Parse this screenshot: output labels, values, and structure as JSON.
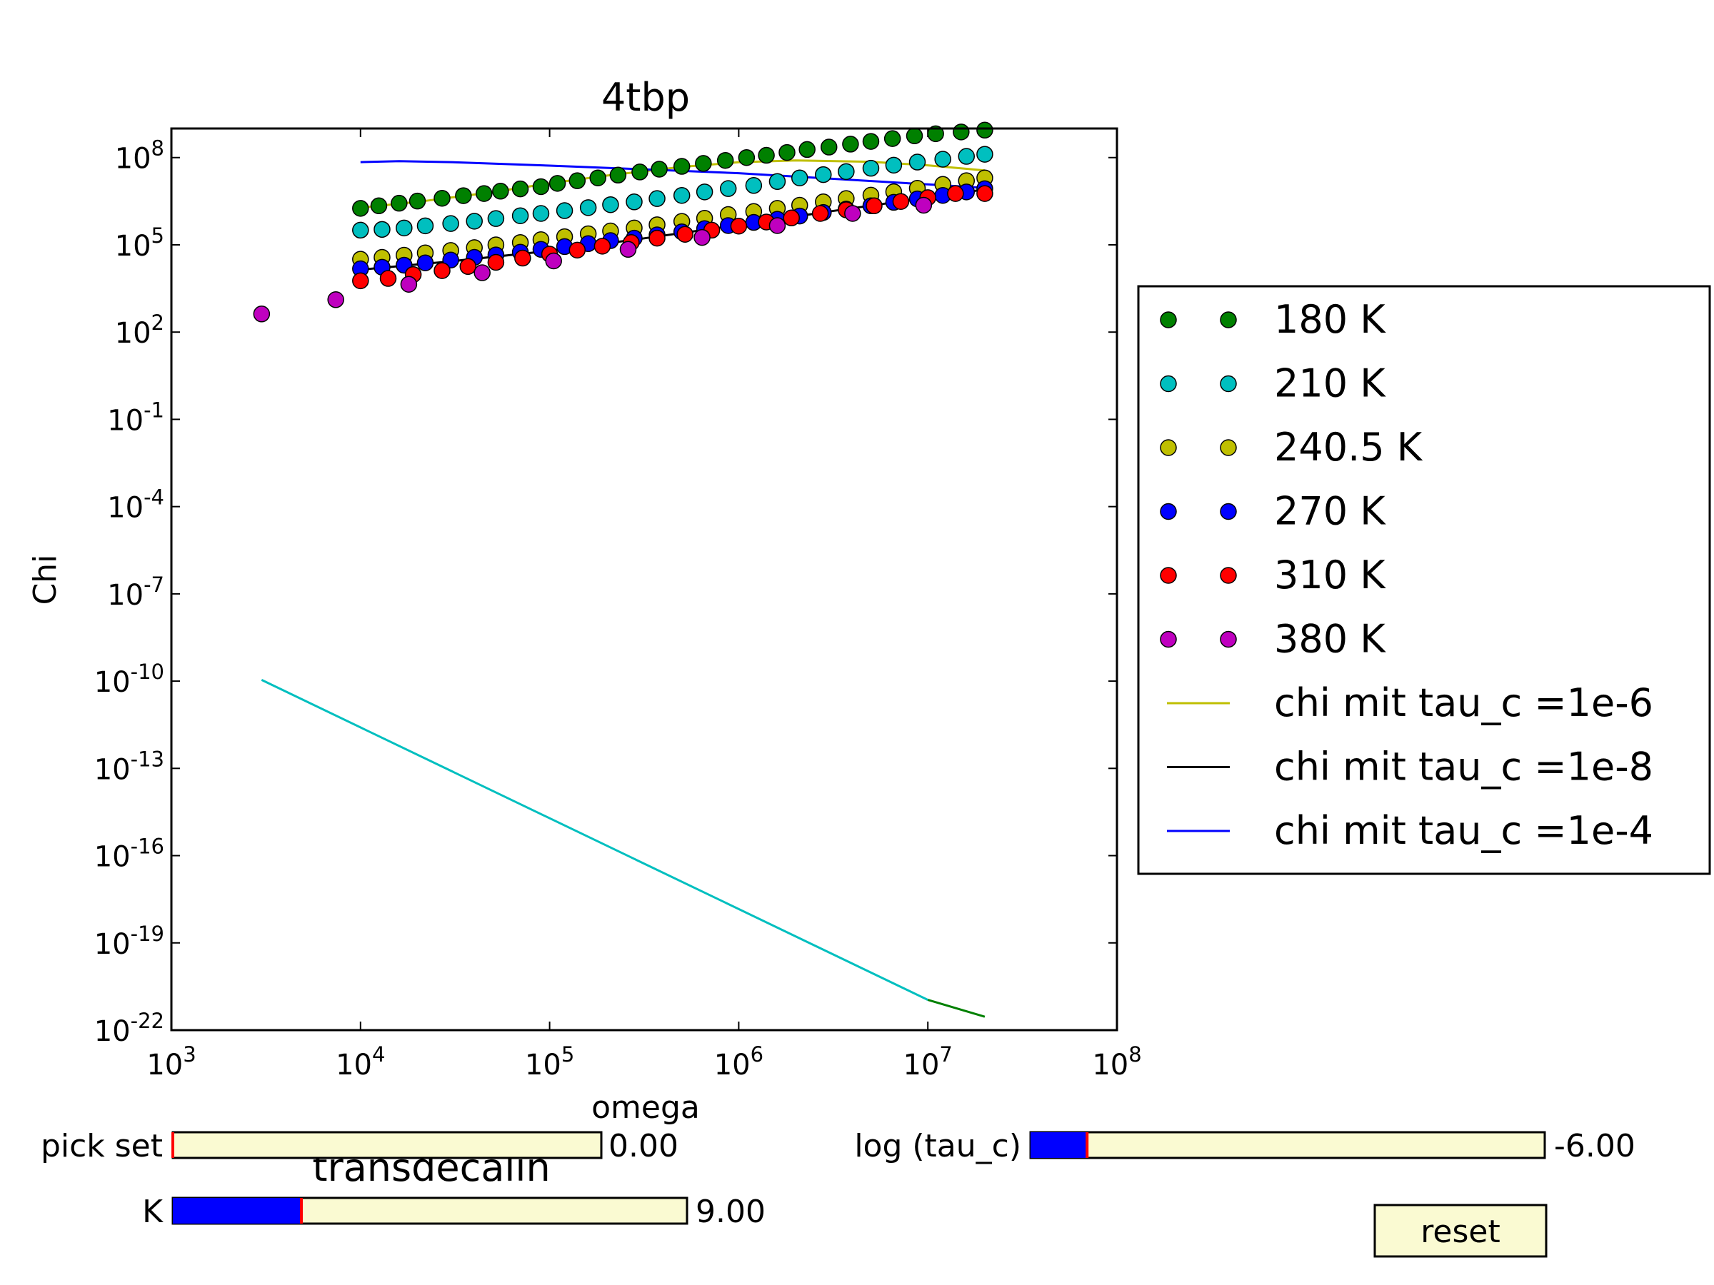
{
  "colors": {
    "background": "#ffffff",
    "slider_track": "#fafad2",
    "slider_fill": "#0000ff",
    "slider_marker": "#ff0000",
    "button_face": "#fafad2"
  },
  "chart_data": {
    "type": "scatter",
    "title": "4tbp",
    "xlabel": "omega",
    "ylabel": "Chi",
    "xscale": "log",
    "yscale": "log",
    "xlim": [
      1000,
      100000000
    ],
    "ylim": [
      1e-22,
      1000000000.0
    ],
    "grid": false,
    "legend_position": "outside-right",
    "x_ticks": [
      {
        "value": 1000,
        "base": "10",
        "exp": "3"
      },
      {
        "value": 10000,
        "base": "10",
        "exp": "4"
      },
      {
        "value": 100000,
        "base": "10",
        "exp": "5"
      },
      {
        "value": 1000000,
        "base": "10",
        "exp": "6"
      },
      {
        "value": 10000000,
        "base": "10",
        "exp": "7"
      },
      {
        "value": 100000000,
        "base": "10",
        "exp": "8"
      }
    ],
    "y_ticks": [
      {
        "value": 100000000.0,
        "base": "10",
        "exp": "8"
      },
      {
        "value": 100000.0,
        "base": "10",
        "exp": "5"
      },
      {
        "value": 100.0,
        "base": "10",
        "exp": "2"
      },
      {
        "value": 0.1,
        "base": "10",
        "exp": "-1"
      },
      {
        "value": 0.0001,
        "base": "10",
        "exp": "-4"
      },
      {
        "value": 1e-07,
        "base": "10",
        "exp": "-7"
      },
      {
        "value": 1e-10,
        "base": "10",
        "exp": "-10"
      },
      {
        "value": 1e-13,
        "base": "10",
        "exp": "-13"
      },
      {
        "value": 1e-16,
        "base": "10",
        "exp": "-16"
      },
      {
        "value": 1e-19,
        "base": "10",
        "exp": "-19"
      },
      {
        "value": 1e-22,
        "base": "10",
        "exp": "-22"
      }
    ],
    "scatter_series": [
      {
        "name": "180 K",
        "color": "#008000",
        "points": [
          [
            10000,
            1800000.0
          ],
          [
            12500,
            2200000.0
          ],
          [
            16000,
            2700000.0
          ],
          [
            20000,
            3200000.0
          ],
          [
            27000,
            4000000.0
          ],
          [
            35000,
            4900000.0
          ],
          [
            45000,
            5800000.0
          ],
          [
            55000,
            7000000.0
          ],
          [
            70000,
            8400000.0
          ],
          [
            90000,
            10000000.0
          ],
          [
            110000,
            13000000.0
          ],
          [
            140000,
            16000000.0
          ],
          [
            180000,
            20000000.0
          ],
          [
            230000,
            25000000.0
          ],
          [
            300000,
            32000000.0
          ],
          [
            380000,
            40000000.0
          ],
          [
            500000,
            50000000.0
          ],
          [
            650000,
            63000000.0
          ],
          [
            850000,
            80000000.0
          ],
          [
            1100000,
            100000000.0
          ],
          [
            1400000,
            120000000.0
          ],
          [
            1800000,
            150000000.0
          ],
          [
            2300000,
            190000000.0
          ],
          [
            3000000,
            230000000.0
          ],
          [
            3900000,
            290000000.0
          ],
          [
            5000000,
            360000000.0
          ],
          [
            6500000,
            450000000.0
          ],
          [
            8500000,
            560000000.0
          ],
          [
            11000000,
            660000000.0
          ],
          [
            15000000,
            760000000.0
          ],
          [
            20000000,
            880000000.0
          ]
        ]
      },
      {
        "name": "210 K",
        "color": "#00bfbf",
        "points": [
          [
            10000,
            320000.0
          ],
          [
            13000,
            340000.0
          ],
          [
            17000,
            380000.0
          ],
          [
            22000,
            450000.0
          ],
          [
            30000,
            540000.0
          ],
          [
            40000,
            650000.0
          ],
          [
            52000,
            800000.0
          ],
          [
            70000,
            1000000.0
          ],
          [
            90000,
            1200000.0
          ],
          [
            120000,
            1500000.0
          ],
          [
            160000,
            1900000.0
          ],
          [
            210000,
            2400000.0
          ],
          [
            280000,
            3000000.0
          ],
          [
            370000,
            3900000.0
          ],
          [
            500000,
            5000000.0
          ],
          [
            660000,
            6600000.0
          ],
          [
            880000,
            8600000.0
          ],
          [
            1200000,
            11000000.0
          ],
          [
            1600000,
            15000000.0
          ],
          [
            2100000,
            20000000.0
          ],
          [
            2800000,
            26000000.0
          ],
          [
            3700000,
            33000000.0
          ],
          [
            5000000,
            43000000.0
          ],
          [
            6600000,
            55000000.0
          ],
          [
            8800000,
            70000000.0
          ],
          [
            12000000,
            88000000.0
          ],
          [
            16000000,
            110000000.0
          ],
          [
            20000000,
            130000000.0
          ]
        ]
      },
      {
        "name": "240.5 K",
        "color": "#bfbf00",
        "points": [
          [
            10000,
            32000.0
          ],
          [
            13000,
            37000.0
          ],
          [
            17000,
            44000.0
          ],
          [
            22000,
            53000.0
          ],
          [
            30000,
            64000.0
          ],
          [
            40000,
            80000.0
          ],
          [
            52000,
            100000.0
          ],
          [
            70000,
            120000.0
          ],
          [
            90000,
            150000.0
          ],
          [
            120000,
            190000.0
          ],
          [
            160000,
            240000.0
          ],
          [
            210000,
            300000.0
          ],
          [
            280000,
            380000.0
          ],
          [
            370000,
            490000.0
          ],
          [
            500000,
            640000.0
          ],
          [
            660000,
            820000.0
          ],
          [
            880000,
            1100000.0
          ],
          [
            1200000,
            1400000.0
          ],
          [
            1600000,
            1800000.0
          ],
          [
            2100000,
            2300000.0
          ],
          [
            2800000,
            3000000.0
          ],
          [
            3700000,
            3900000.0
          ],
          [
            5000000,
            5100000.0
          ],
          [
            6600000,
            6700000.0
          ],
          [
            8800000,
            8800000.0
          ],
          [
            12000000,
            12000000.0
          ],
          [
            16000000,
            16000000.0
          ],
          [
            20000000,
            20000000.0
          ]
        ]
      },
      {
        "name": "270 K",
        "color": "#0000ff",
        "points": [
          [
            10000,
            15000.0
          ],
          [
            13000,
            17000.0
          ],
          [
            17000,
            20000.0
          ],
          [
            22000,
            24000.0
          ],
          [
            30000,
            30000.0
          ],
          [
            40000,
            37000.0
          ],
          [
            52000,
            45000.0
          ],
          [
            70000,
            56000.0
          ],
          [
            90000,
            70000.0
          ],
          [
            120000,
            87000.0
          ],
          [
            160000,
            110000.0
          ],
          [
            210000,
            140000.0
          ],
          [
            280000,
            170000.0
          ],
          [
            370000,
            220000.0
          ],
          [
            500000,
            280000.0
          ],
          [
            660000,
            360000.0
          ],
          [
            880000,
            460000.0
          ],
          [
            1200000,
            590000.0
          ],
          [
            1600000,
            760000.0
          ],
          [
            2100000,
            980000.0
          ],
          [
            2800000,
            1300000.0
          ],
          [
            3700000,
            1700000.0
          ],
          [
            5000000,
            2200000.0
          ],
          [
            6600000,
            2900000.0
          ],
          [
            8800000,
            3800000.0
          ],
          [
            12000000,
            5000000.0
          ],
          [
            16000000,
            6600000.0
          ],
          [
            20000000,
            8500000.0
          ]
        ]
      },
      {
        "name": "310 K",
        "color": "#ff0000",
        "points": [
          [
            10000,
            5800.0
          ],
          [
            14000,
            7000.0
          ],
          [
            19000,
            9500.0
          ],
          [
            27000,
            13000.0
          ],
          [
            37000,
            18000.0
          ],
          [
            52000,
            25000.0
          ],
          [
            72000,
            35000.0
          ],
          [
            100000,
            48000.0
          ],
          [
            140000,
            66000.0
          ],
          [
            190000,
            90000.0
          ],
          [
            270000,
            120000.0
          ],
          [
            370000,
            170000.0
          ],
          [
            520000,
            230000.0
          ],
          [
            720000,
            320000.0
          ],
          [
            1000000,
            440000.0
          ],
          [
            1400000,
            610000.0
          ],
          [
            1900000,
            840000.0
          ],
          [
            2700000,
            1200000.0
          ],
          [
            3700000,
            1600000.0
          ],
          [
            5200000,
            2200000.0
          ],
          [
            7200000,
            3100000.0
          ],
          [
            10000000,
            4200000.0
          ],
          [
            14000000,
            5800000.0
          ],
          [
            20000000,
            5800000.0
          ]
        ]
      },
      {
        "name": "380 K",
        "color": "#bf00bf",
        "points": [
          [
            3000,
            420
          ],
          [
            7400,
            1300
          ],
          [
            18000,
            4400
          ],
          [
            44000,
            11000.0
          ],
          [
            105000,
            28000.0
          ],
          [
            260000,
            70000.0
          ],
          [
            640000,
            180000.0
          ],
          [
            1600000,
            460000.0
          ],
          [
            4000000,
            1200000.0
          ],
          [
            9500000,
            2300000.0
          ]
        ]
      }
    ],
    "line_series": [
      {
        "name": "chi mit tau_c =1e-6",
        "color": "#bfbf00",
        "points": [
          [
            10000,
            1900000.0
          ],
          [
            20000,
            3000000.0
          ],
          [
            50000,
            6500000.0
          ],
          [
            100000,
            13000000.0
          ],
          [
            200000,
            24000000.0
          ],
          [
            500000,
            48000000.0
          ],
          [
            1000000,
            69000000.0
          ],
          [
            2000000,
            80000000.0
          ],
          [
            5000000,
            72000000.0
          ],
          [
            10000000,
            54000000.0
          ],
          [
            20000000,
            36000000.0
          ]
        ]
      },
      {
        "name": "chi mit tau_c =1e-8",
        "color": "#000000",
        "points": [
          [
            10000,
            14000.0
          ],
          [
            30000,
            27000.0
          ],
          [
            100000,
            62000.0
          ],
          [
            300000,
            160000.0
          ],
          [
            1000000,
            480000.0
          ],
          [
            3000000,
            1400000.0
          ],
          [
            10000000,
            4200000.0
          ],
          [
            20000000,
            8000000.0
          ]
        ]
      },
      {
        "name": "chi mit tau_c =1e-4",
        "color": "#0000ff",
        "points": [
          [
            10000,
            70000000.0
          ],
          [
            16000,
            75000000.0
          ],
          [
            30000,
            70000000.0
          ],
          [
            100000,
            53000000.0
          ],
          [
            300000,
            40000000.0
          ],
          [
            1000000,
            29000000.0
          ],
          [
            3000000,
            19000000.0
          ],
          [
            10000000,
            12000000.0
          ],
          [
            20000000,
            9000000.0
          ]
        ]
      },
      {
        "name": "",
        "color": "#00bfbf",
        "points": [
          [
            3000,
            1.1e-10
          ],
          [
            10000000,
            1.1e-21
          ]
        ]
      },
      {
        "name": "",
        "color": "#008000",
        "points": [
          [
            10000000,
            1.1e-21
          ],
          [
            20000000,
            2.9e-22
          ]
        ]
      }
    ]
  },
  "annotations": {
    "dataset_name": "transdecalin"
  },
  "controls": {
    "pick_set": {
      "label": "pick set",
      "value_text": "0.00",
      "fill_fraction": 0.0
    },
    "k": {
      "label": "K",
      "value_text": "9.00",
      "fill_fraction": 0.25
    },
    "log_tau_c": {
      "label": "log (tau_c)",
      "value_text": "-6.00",
      "fill_fraction": 0.11
    },
    "reset": {
      "label": "reset"
    }
  }
}
